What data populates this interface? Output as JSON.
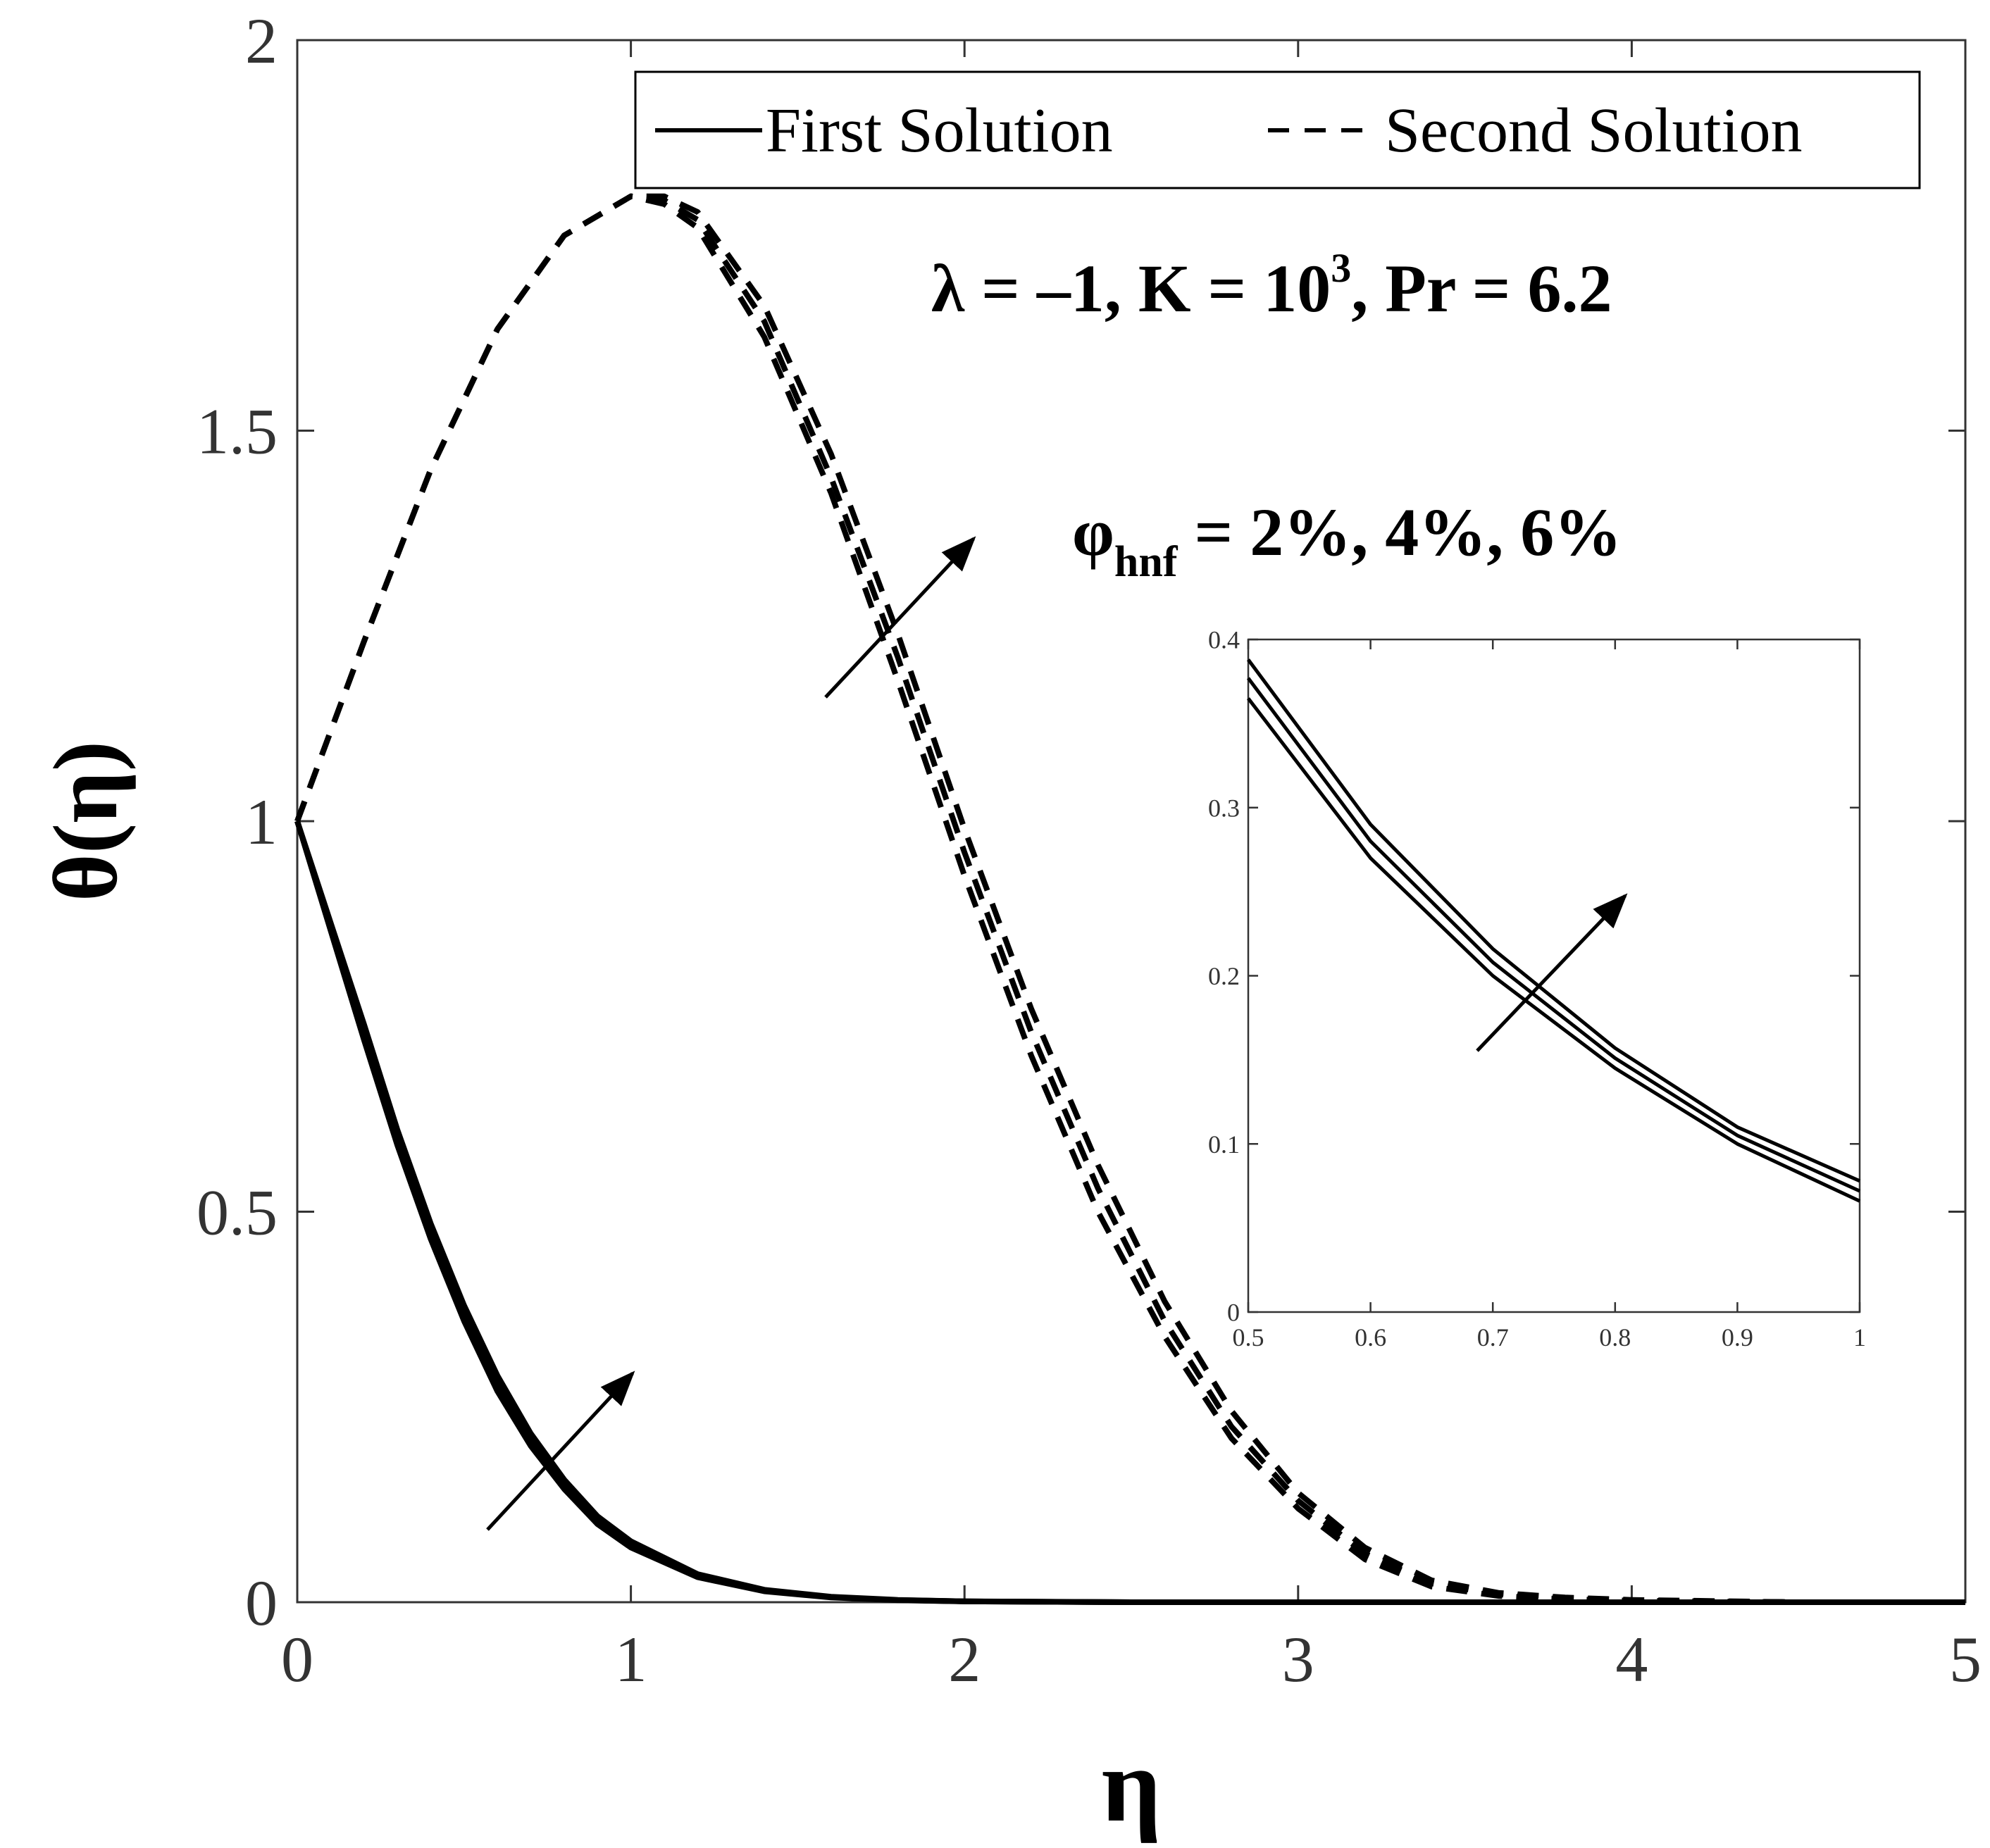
{
  "chart_data": [
    {
      "type": "line",
      "xlabel": "η",
      "ylabel": "θ(η)",
      "xlim": [
        0,
        5
      ],
      "ylim": [
        0,
        2
      ],
      "xticks": [
        "0",
        "1",
        "2",
        "3",
        "4",
        "5"
      ],
      "yticks": [
        "0",
        "0.5",
        "1",
        "1.5",
        "2"
      ],
      "legend": {
        "placement": "top-right",
        "entries": [
          {
            "label": "First Solution",
            "style": "solid"
          },
          {
            "label": "Second Solution",
            "style": "dashed"
          }
        ]
      },
      "annotations": {
        "params_main": "λ = –1, K = 10",
        "params_exp": "3",
        "params_tail": ", Pr = 6.2",
        "phi_symbol": "φ",
        "phi_sub": "hnf",
        "phi_values": " = 2%, 4%, 6%"
      },
      "series": [
        {
          "style": "solid",
          "x": [
            0,
            0.1,
            0.2,
            0.3,
            0.4,
            0.5,
            0.6,
            0.7,
            0.8,
            0.9,
            1.0,
            1.2,
            1.4,
            1.6,
            1.8,
            2.0,
            2.5,
            3.0,
            4.0,
            5.0
          ],
          "y": [
            1.0,
            0.86,
            0.72,
            0.585,
            0.465,
            0.36,
            0.27,
            0.2,
            0.145,
            0.1,
            0.07,
            0.032,
            0.014,
            0.006,
            0.0025,
            0.001,
            0.0,
            0.0,
            0.0,
            0.0
          ]
        },
        {
          "style": "solid",
          "x": [
            0,
            0.1,
            0.2,
            0.3,
            0.4,
            0.5,
            0.6,
            0.7,
            0.8,
            0.9,
            1.0,
            1.2,
            1.4,
            1.6,
            1.8,
            2.0,
            2.5,
            3.0,
            4.0,
            5.0
          ],
          "y": [
            1.0,
            0.865,
            0.73,
            0.595,
            0.475,
            0.37,
            0.28,
            0.208,
            0.151,
            0.105,
            0.074,
            0.034,
            0.015,
            0.0065,
            0.0027,
            0.0011,
            0.0,
            0.0,
            0.0,
            0.0
          ]
        },
        {
          "style": "solid",
          "x": [
            0,
            0.1,
            0.2,
            0.3,
            0.4,
            0.5,
            0.6,
            0.7,
            0.8,
            0.9,
            1.0,
            1.2,
            1.4,
            1.6,
            1.8,
            2.0,
            2.5,
            3.0,
            4.0,
            5.0
          ],
          "y": [
            1.0,
            0.87,
            0.74,
            0.605,
            0.485,
            0.38,
            0.29,
            0.216,
            0.157,
            0.11,
            0.078,
            0.036,
            0.016,
            0.007,
            0.003,
            0.0012,
            0.0,
            0.0,
            0.0,
            0.0
          ]
        },
        {
          "style": "dashed",
          "x": [
            0,
            0.2,
            0.4,
            0.6,
            0.8,
            1.0,
            1.1,
            1.2,
            1.4,
            1.6,
            1.8,
            2.0,
            2.2,
            2.4,
            2.6,
            2.8,
            3.0,
            3.2,
            3.4,
            3.6,
            3.8,
            4.0,
            4.5,
            5.0
          ],
          "y": [
            1.0,
            1.23,
            1.45,
            1.63,
            1.75,
            1.8,
            1.79,
            1.76,
            1.62,
            1.42,
            1.18,
            0.93,
            0.7,
            0.5,
            0.34,
            0.21,
            0.12,
            0.055,
            0.02,
            0.008,
            0.004,
            0.002,
            0.0,
            0.0
          ]
        },
        {
          "style": "dashed",
          "x": [
            0,
            0.2,
            0.4,
            0.6,
            0.8,
            1.0,
            1.1,
            1.2,
            1.4,
            1.6,
            1.8,
            2.0,
            2.2,
            2.4,
            2.6,
            2.8,
            3.0,
            3.2,
            3.4,
            3.6,
            3.8,
            4.0,
            4.5,
            5.0
          ],
          "y": [
            1.0,
            1.23,
            1.45,
            1.63,
            1.75,
            1.8,
            1.795,
            1.77,
            1.64,
            1.44,
            1.21,
            0.96,
            0.73,
            0.53,
            0.36,
            0.225,
            0.13,
            0.062,
            0.024,
            0.01,
            0.005,
            0.002,
            0.0,
            0.0
          ]
        },
        {
          "style": "dashed",
          "x": [
            0,
            0.2,
            0.4,
            0.6,
            0.8,
            1.0,
            1.1,
            1.2,
            1.4,
            1.6,
            1.8,
            2.0,
            2.2,
            2.4,
            2.6,
            2.8,
            3.0,
            3.2,
            3.4,
            3.6,
            3.8,
            4.0,
            4.5,
            5.0
          ],
          "y": [
            1.0,
            1.23,
            1.45,
            1.63,
            1.75,
            1.8,
            1.8,
            1.78,
            1.66,
            1.47,
            1.24,
            0.99,
            0.76,
            0.56,
            0.385,
            0.245,
            0.14,
            0.07,
            0.028,
            0.012,
            0.006,
            0.003,
            0.0,
            0.0
          ]
        }
      ]
    },
    {
      "type": "line",
      "xlim": [
        0.5,
        1
      ],
      "ylim": [
        0,
        0.4
      ],
      "xticks": [
        "0.5",
        "0.6",
        "0.7",
        "0.8",
        "0.9",
        "1"
      ],
      "yticks": [
        "0",
        "0.1",
        "0.2",
        "0.3",
        "0.4"
      ],
      "series": [
        {
          "style": "solid",
          "x": [
            0.5,
            0.6,
            0.7,
            0.8,
            0.9,
            1.0
          ],
          "y": [
            0.365,
            0.27,
            0.2,
            0.145,
            0.1,
            0.066
          ]
        },
        {
          "style": "solid",
          "x": [
            0.5,
            0.6,
            0.7,
            0.8,
            0.9,
            1.0
          ],
          "y": [
            0.377,
            0.28,
            0.208,
            0.151,
            0.105,
            0.072
          ]
        },
        {
          "style": "solid",
          "x": [
            0.5,
            0.6,
            0.7,
            0.8,
            0.9,
            1.0
          ],
          "y": [
            0.388,
            0.29,
            0.216,
            0.157,
            0.11,
            0.078
          ]
        }
      ]
    }
  ]
}
